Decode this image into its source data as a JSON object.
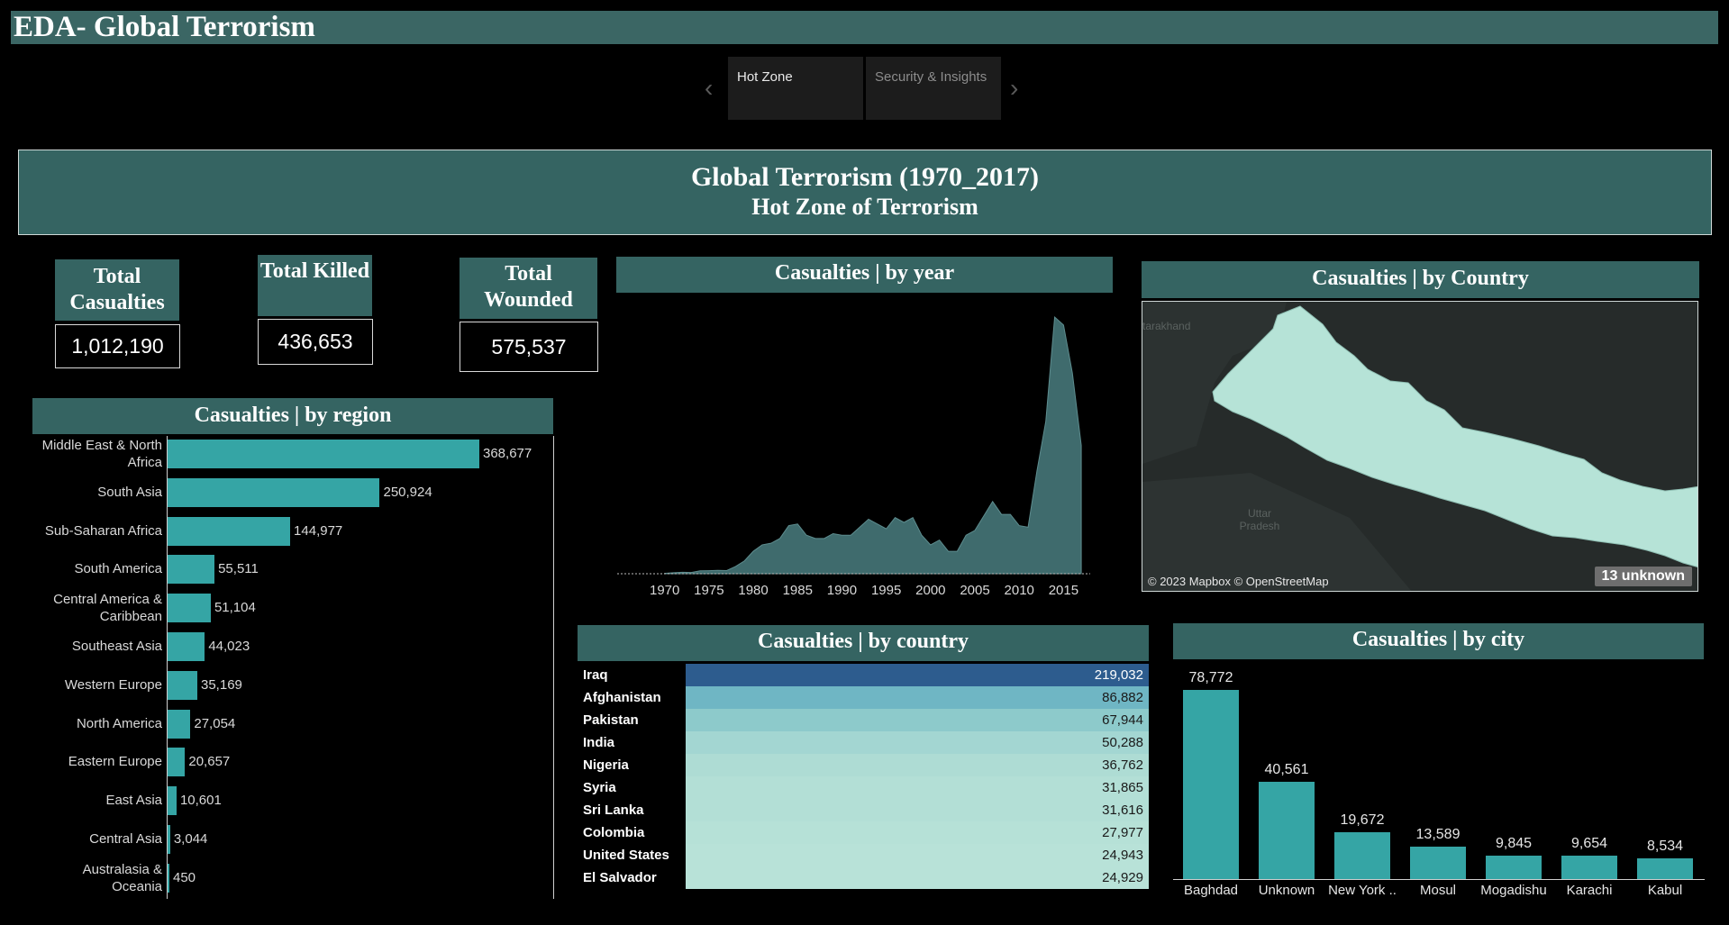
{
  "app": {
    "title": "EDA- Global Terrorism"
  },
  "nav": {
    "tabs": [
      {
        "label": "Hot Zone",
        "active": true
      },
      {
        "label": "Security & Insights",
        "active": false
      }
    ]
  },
  "banner": {
    "title": "Global Terrorism (1970_2017)",
    "subtitle": "Hot Zone of Terrorism"
  },
  "kpis": {
    "casualties": {
      "label": "Total Casualties",
      "value": "1,012,190"
    },
    "killed": {
      "label": "Total Killed",
      "value": "436,653"
    },
    "wounded": {
      "label": "Total Wounded",
      "value": "575,537"
    }
  },
  "sections": {
    "region": "Casualties | by region",
    "year": "Casualties | by year",
    "map": "Casualties | by Country",
    "country": "Casualties | by country",
    "city": "Casualties | by city"
  },
  "map": {
    "attribution": "© 2023 Mapbox © OpenStreetMap",
    "unknown_badge": "13 unknown",
    "labels": [
      "tarakhand",
      "Uttar Pradesh"
    ]
  },
  "colors": {
    "header_teal": "#356462",
    "bar_teal": "#35a5a5",
    "map_fill": "#b6e3d7"
  },
  "chart_data": [
    {
      "type": "bar",
      "orientation": "horizontal",
      "title": "Casualties | by region",
      "categories": [
        "Middle East & North Africa",
        "South Asia",
        "Sub-Saharan Africa",
        "South America",
        "Central America & Caribbean",
        "Southeast Asia",
        "Western Europe",
        "North America",
        "Eastern Europe",
        "East Asia",
        "Central Asia",
        "Australasia & Oceania"
      ],
      "values": [
        368677,
        250924,
        144977,
        55511,
        51104,
        44023,
        35169,
        27054,
        20657,
        10601,
        3044,
        450
      ],
      "value_labels": [
        "368,677",
        "250,924",
        "144,977",
        "55,511",
        "51,104",
        "44,023",
        "35,169",
        "27,054",
        "20,657",
        "10,601",
        "3,044",
        "450"
      ]
    },
    {
      "type": "area",
      "title": "Casualties | by year",
      "x": [
        1970,
        1971,
        1972,
        1973,
        1974,
        1975,
        1976,
        1977,
        1978,
        1979,
        1980,
        1981,
        1982,
        1983,
        1984,
        1985,
        1986,
        1987,
        1988,
        1989,
        1990,
        1991,
        1992,
        1993,
        1994,
        1995,
        1996,
        1997,
        1998,
        1999,
        2000,
        2001,
        2002,
        2003,
        2004,
        2005,
        2006,
        2007,
        2008,
        2009,
        2010,
        2011,
        2012,
        2013,
        2014,
        2015,
        2016,
        2017
      ],
      "y": [
        200,
        600,
        900,
        800,
        1800,
        1900,
        2100,
        2000,
        4500,
        8000,
        14000,
        18000,
        19000,
        22000,
        30000,
        31000,
        24000,
        22000,
        22000,
        25000,
        24000,
        24000,
        29000,
        34000,
        31000,
        28000,
        35000,
        32000,
        35000,
        24000,
        18000,
        21000,
        14000,
        14000,
        24000,
        27000,
        36000,
        45000,
        37000,
        37000,
        30000,
        29000,
        64000,
        95000,
        160000,
        155000,
        125000,
        80000
      ],
      "xticks": [
        "1970",
        "1975",
        "1980",
        "1985",
        "1990",
        "1995",
        "2000",
        "2005",
        "2010",
        "2015"
      ]
    },
    {
      "type": "table",
      "title": "Casualties | by country",
      "categories": [
        "Iraq",
        "Afghanistan",
        "Pakistan",
        "India",
        "Nigeria",
        "Syria",
        "Sri Lanka",
        "Colombia",
        "United States",
        "El Salvador"
      ],
      "values": [
        219032,
        86882,
        67944,
        50288,
        36762,
        31865,
        31616,
        27977,
        24943,
        24929
      ],
      "value_labels": [
        "219,032",
        "86,882",
        "67,944",
        "50,288",
        "36,762",
        "31,865",
        "31,616",
        "27,977",
        "24,943",
        "24,929"
      ],
      "row_colors": [
        "#2d5c8e",
        "#6fb6c4",
        "#8dcacb",
        "#a3d6d2",
        "#aedcd4",
        "#b3dfd6",
        "#b3dfd6",
        "#b6e1d7",
        "#b8e2d8",
        "#b8e2d8"
      ]
    },
    {
      "type": "bar",
      "title": "Casualties | by city",
      "categories": [
        "Baghdad",
        "Unknown",
        "New York ..",
        "Mosul",
        "Mogadishu",
        "Karachi",
        "Kabul"
      ],
      "values": [
        78772,
        40561,
        19672,
        13589,
        9845,
        9654,
        8534
      ],
      "value_labels": [
        "78,772",
        "40,561",
        "19,672",
        "13,589",
        "9,845",
        "9,654",
        "8,534"
      ]
    }
  ]
}
